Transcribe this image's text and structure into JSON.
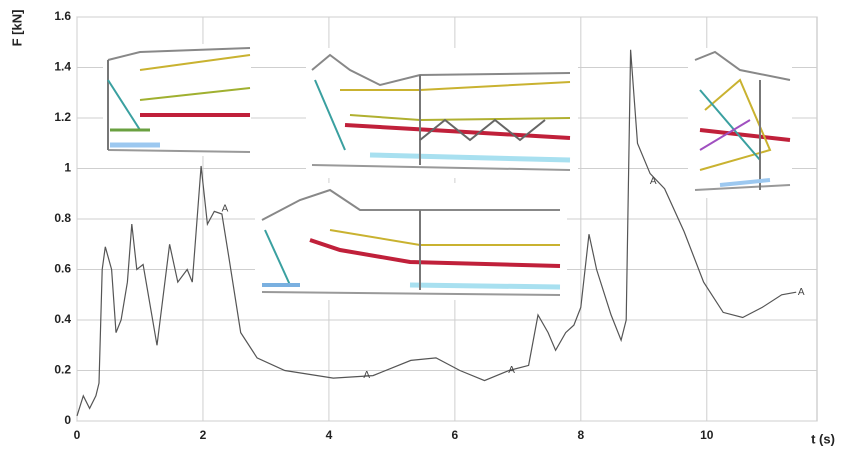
{
  "chart_data": {
    "type": "line",
    "y_label": "F [kN]",
    "x_label": "t (s)",
    "xlim": [
      0,
      11.75
    ],
    "xticks": [
      0,
      2,
      4,
      6,
      8,
      10
    ],
    "ylim": [
      0,
      1.6
    ],
    "yticks": [
      0,
      0.2,
      0.4,
      0.6,
      0.8,
      1,
      1.2,
      1.4,
      1.6
    ],
    "grid": true,
    "color": "#555555",
    "x": [
      0,
      0.1,
      0.2,
      0.3,
      0.35,
      0.4,
      0.45,
      0.55,
      0.62,
      0.7,
      0.8,
      0.87,
      0.95,
      1.05,
      1.27,
      1.47,
      1.6,
      1.75,
      1.83,
      1.97,
      2.07,
      2.18,
      2.3,
      2.41,
      2.6,
      2.86,
      3.3,
      4.07,
      4.7,
      5.3,
      5.7,
      6.08,
      6.47,
      6.86,
      7.17,
      7.32,
      7.48,
      7.6,
      7.76,
      7.89,
      8.0,
      8.13,
      8.25,
      8.48,
      8.64,
      8.72,
      8.79,
      8.9,
      9.1,
      9.33,
      9.64,
      9.95,
      10.26,
      10.57,
      10.88,
      11.19,
      11.42
    ],
    "values": [
      0.02,
      0.1,
      0.05,
      0.1,
      0.15,
      0.6,
      0.69,
      0.6,
      0.35,
      0.4,
      0.55,
      0.78,
      0.6,
      0.62,
      0.3,
      0.7,
      0.55,
      0.6,
      0.55,
      1.01,
      0.78,
      0.83,
      0.82,
      0.65,
      0.35,
      0.25,
      0.2,
      0.17,
      0.18,
      0.24,
      0.25,
      0.2,
      0.16,
      0.2,
      0.22,
      0.42,
      0.35,
      0.28,
      0.35,
      0.38,
      0.45,
      0.74,
      0.6,
      0.42,
      0.32,
      0.4,
      1.47,
      1.1,
      0.98,
      0.92,
      0.75,
      0.55,
      0.43,
      0.41,
      0.45,
      0.5,
      0.51
    ],
    "annotations": [
      {
        "text": "A",
        "x": 2.35,
        "y": 0.84
      },
      {
        "text": "A",
        "x": 4.6,
        "y": 0.18
      },
      {
        "text": "A",
        "x": 6.9,
        "y": 0.2
      },
      {
        "text": "A",
        "x": 9.15,
        "y": 0.95
      },
      {
        "text": "A",
        "x": 11.5,
        "y": 0.51
      }
    ]
  }
}
